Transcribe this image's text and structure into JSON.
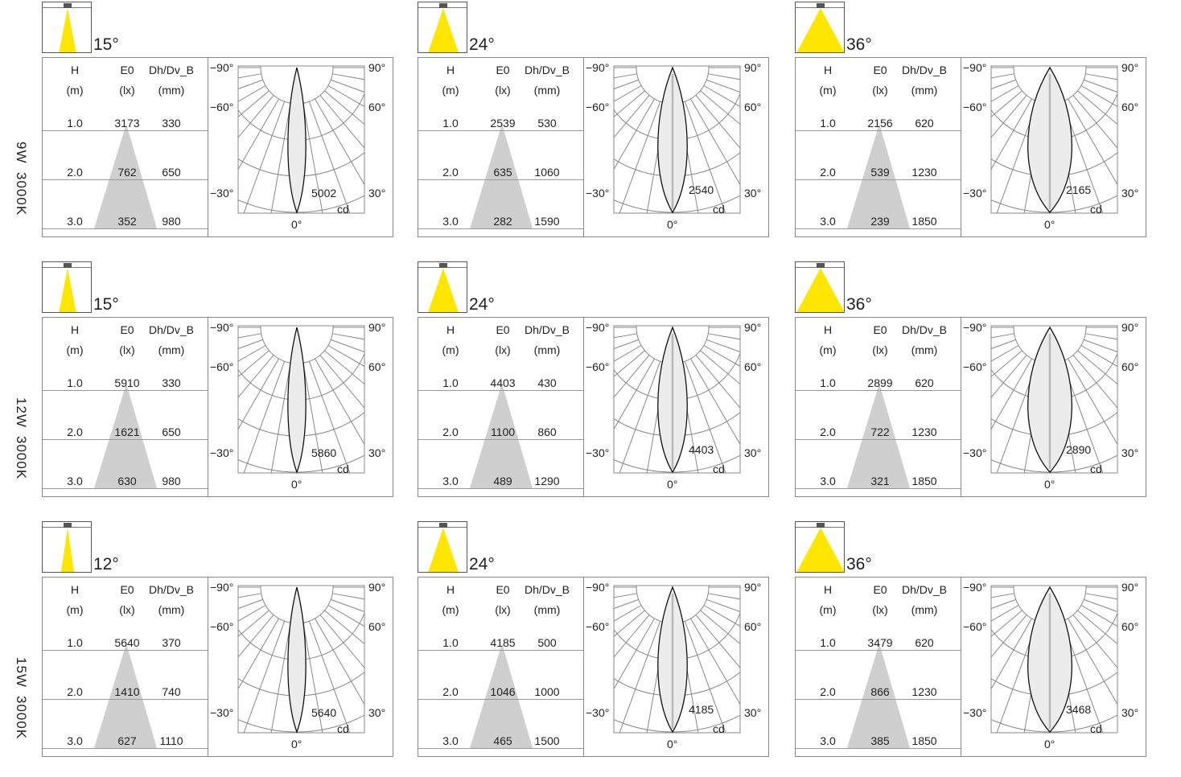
{
  "headers": {
    "h": "H",
    "h_unit": "(m)",
    "e": "E0",
    "e_unit": "(lx)",
    "d": "Dh/Dv_B",
    "d_unit": "(mm)"
  },
  "polar_labels": {
    "m90": "−90°",
    "m60": "−60°",
    "m30": "−30°",
    "p90": "90°",
    "p60": "60°",
    "p30": "30°",
    "zero": "0°",
    "unit": "cd"
  },
  "colors": {
    "beam_yellow": "#ffe600",
    "cone_gray": "#cfcfcf",
    "grid": "#888888"
  },
  "rows": [
    {
      "power": "9W",
      "cct": "3000K",
      "panels": [
        {
          "angle": "15°",
          "cd": "5002",
          "rows": [
            {
              "h": "1.0",
              "e": "3173",
              "d": "330"
            },
            {
              "h": "2.0",
              "e": "762",
              "d": "650"
            },
            {
              "h": "3.0",
              "e": "352",
              "d": "980"
            }
          ]
        },
        {
          "angle": "24°",
          "cd": "2540",
          "rows": [
            {
              "h": "1.0",
              "e": "2539",
              "d": "530"
            },
            {
              "h": "2.0",
              "e": "635",
              "d": "1060"
            },
            {
              "h": "3.0",
              "e": "282",
              "d": "1590"
            }
          ]
        },
        {
          "angle": "36°",
          "cd": "2165",
          "rows": [
            {
              "h": "1.0",
              "e": "2156",
              "d": "620"
            },
            {
              "h": "2.0",
              "e": "539",
              "d": "1230"
            },
            {
              "h": "3.0",
              "e": "239",
              "d": "1850"
            }
          ]
        }
      ]
    },
    {
      "power": "12W",
      "cct": "3000K",
      "panels": [
        {
          "angle": "15°",
          "cd": "5860",
          "rows": [
            {
              "h": "1.0",
              "e": "5910",
              "d": "330"
            },
            {
              "h": "2.0",
              "e": "1621",
              "d": "650"
            },
            {
              "h": "3.0",
              "e": "630",
              "d": "980"
            }
          ]
        },
        {
          "angle": "24°",
          "cd": "4403",
          "rows": [
            {
              "h": "1.0",
              "e": "4403",
              "d": "430"
            },
            {
              "h": "2.0",
              "e": "1100",
              "d": "860"
            },
            {
              "h": "3.0",
              "e": "489",
              "d": "1290"
            }
          ]
        },
        {
          "angle": "36°",
          "cd": "2890",
          "rows": [
            {
              "h": "1.0",
              "e": "2899",
              "d": "620"
            },
            {
              "h": "2.0",
              "e": "722",
              "d": "1230"
            },
            {
              "h": "3.0",
              "e": "321",
              "d": "1850"
            }
          ]
        }
      ]
    },
    {
      "power": "15W",
      "cct": "3000K",
      "panels": [
        {
          "angle": "12°",
          "cd": "5640",
          "rows": [
            {
              "h": "1.0",
              "e": "5640",
              "d": "370"
            },
            {
              "h": "2.0",
              "e": "1410",
              "d": "740"
            },
            {
              "h": "3.0",
              "e": "627",
              "d": "1110"
            }
          ]
        },
        {
          "angle": "24°",
          "cd": "4185",
          "rows": [
            {
              "h": "1.0",
              "e": "4185",
              "d": "500"
            },
            {
              "h": "2.0",
              "e": "1046",
              "d": "1000"
            },
            {
              "h": "3.0",
              "e": "465",
              "d": "1500"
            }
          ]
        },
        {
          "angle": "36°",
          "cd": "3468",
          "rows": [
            {
              "h": "1.0",
              "e": "3479",
              "d": "620"
            },
            {
              "h": "2.0",
              "e": "866",
              "d": "1230"
            },
            {
              "h": "3.0",
              "e": "385",
              "d": "1850"
            }
          ]
        }
      ]
    }
  ]
}
